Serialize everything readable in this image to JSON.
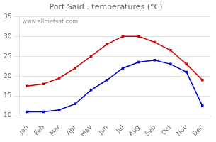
{
  "chart_data": {
    "type": "line",
    "title": "Port Said : temperatures (°C)",
    "categories": [
      "Jan",
      "Feb",
      "Mar",
      "Apr",
      "May",
      "Jun",
      "Jul",
      "Aug",
      "Sep",
      "Oct",
      "Nov",
      "Dec"
    ],
    "series": [
      {
        "color": "#cc0000",
        "values": [
          17.5,
          18.0,
          19.5,
          22.0,
          25.0,
          28.0,
          30.0,
          30.0,
          28.5,
          26.5,
          23.0,
          19.0
        ]
      },
      {
        "color": "#0000cc",
        "values": [
          11.0,
          11.0,
          11.5,
          13.0,
          16.5,
          19.0,
          22.0,
          23.5,
          24.0,
          23.0,
          21.0,
          12.5
        ]
      }
    ],
    "ylim": [
      10,
      35
    ],
    "yticks": [
      10,
      15,
      20,
      25,
      30,
      35
    ],
    "grid": true,
    "marker": "square",
    "annotation": "www.allmetsat.com"
  }
}
